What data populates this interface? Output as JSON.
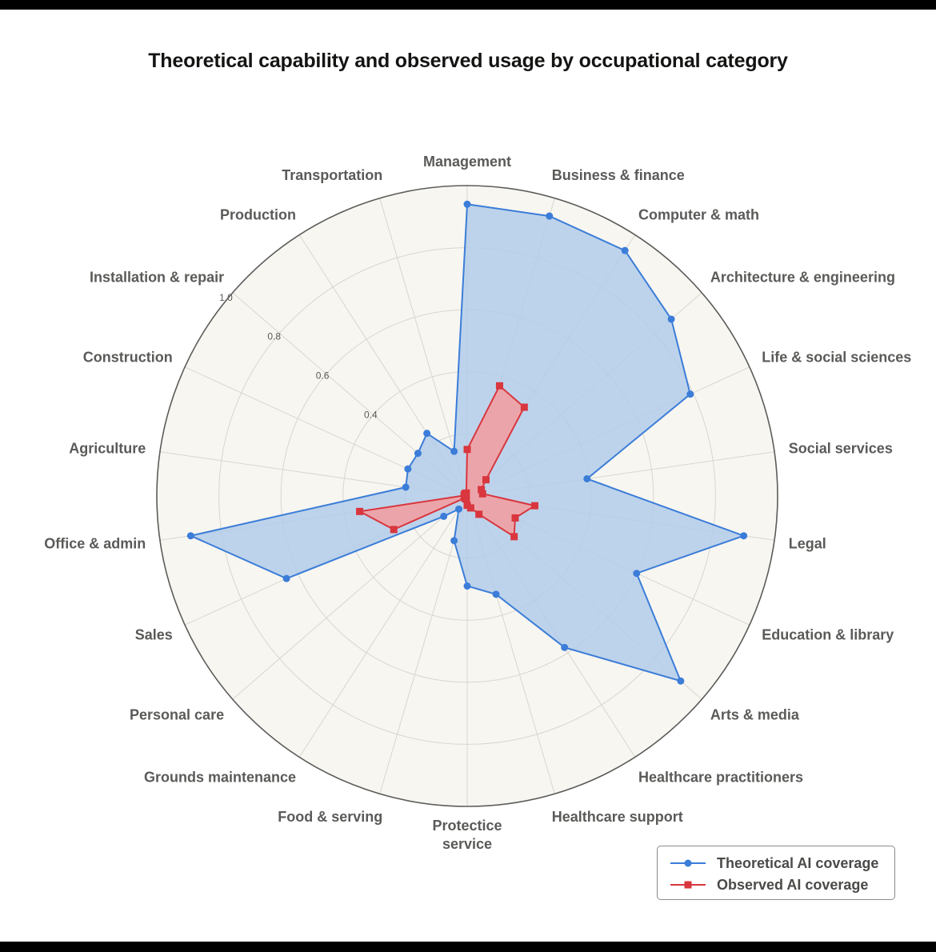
{
  "chart_data": {
    "type": "radar",
    "title": "Theoretical capability and observed usage by occupational category",
    "categories": [
      "Management",
      "Business & finance",
      "Computer & math",
      "Architecture & engineering",
      "Life & social sciences",
      "Social services",
      "Legal",
      "Education & library",
      "Arts & media",
      "Healthcare practitioners",
      "Healthcare support",
      "Protectice service",
      "Food & serving",
      "Grounds maintenance",
      "Personal care",
      "Sales",
      "Office & admin",
      "Agriculture",
      "Construction",
      "Installation & repair",
      "Production",
      "Transportation"
    ],
    "series": [
      {
        "name": "Theoretical AI coverage",
        "color": "#3b7dd8",
        "fill": "#b3cdea",
        "marker": "circle",
        "values": [
          0.94,
          0.94,
          0.94,
          0.87,
          0.79,
          0.39,
          0.9,
          0.6,
          0.91,
          0.58,
          0.33,
          0.29,
          0.15,
          0.05,
          0.1,
          0.64,
          0.9,
          0.2,
          0.21,
          0.21,
          0.24,
          0.15
        ]
      },
      {
        "name": "Observed AI coverage",
        "color": "#d9363e",
        "fill": "#f0a0a3",
        "marker": "square",
        "values": [
          0.15,
          0.37,
          0.34,
          0.08,
          0.05,
          0.05,
          0.22,
          0.17,
          0.2,
          0.07,
          0.04,
          0.03,
          0.01,
          0.01,
          0.01,
          0.26,
          0.35,
          0.01,
          0.01,
          0.01,
          0.01,
          0.01
        ]
      }
    ],
    "rlim": [
      0,
      1
    ],
    "rticks": [
      "0.4",
      "0.6",
      "0.8",
      "1.0"
    ],
    "rtick_values": [
      0.4,
      0.6,
      0.8,
      1.0
    ],
    "grid": true,
    "legend_position": "bottom-right"
  }
}
